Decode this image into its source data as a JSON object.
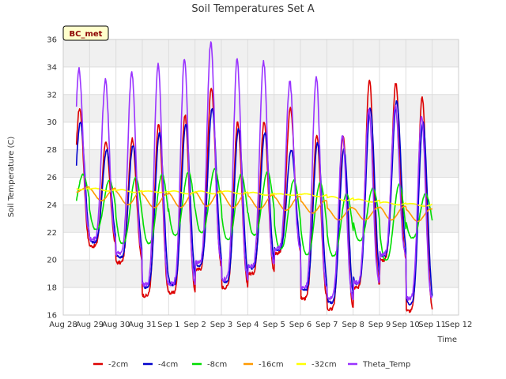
{
  "chart_data": {
    "type": "line",
    "title": "Soil Temperatures Set A",
    "xlabel": "Time",
    "ylabel": "Soil Temperature (C)",
    "badge": "BC_met",
    "ylim": [
      16,
      36
    ],
    "yticks": [
      16,
      18,
      20,
      22,
      24,
      26,
      28,
      30,
      32,
      34,
      36
    ],
    "xlim_days": [
      0,
      15
    ],
    "xticks": [
      "Aug 28",
      "Aug 29",
      "Aug 30",
      "Aug 31",
      "Sep 1",
      "Sep 2",
      "Sep 3",
      "Sep 4",
      "Sep 5",
      "Sep 6",
      "Sep 7",
      "Sep 8",
      "Sep 9",
      "Sep 10",
      "Sep 11",
      "Sep 12"
    ],
    "grid": true,
    "legend": "bottom",
    "series": [
      {
        "name": "-2cm",
        "color": "#dd0000",
        "daily_max": [
          31.0,
          28.5,
          28.8,
          29.8,
          30.5,
          32.5,
          30.0,
          30.0,
          31.0,
          29.0,
          29.0,
          33.0,
          32.8,
          31.8
        ],
        "daily_min": [
          21.0,
          21.0,
          19.8,
          17.4,
          17.6,
          19.3,
          18.0,
          19.0,
          20.5,
          17.2,
          16.4,
          18.0,
          20.0,
          16.3
        ]
      },
      {
        "name": "-4cm",
        "color": "#0000cc",
        "daily_max": [
          30.0,
          28.0,
          28.3,
          29.2,
          29.8,
          31.0,
          29.5,
          29.2,
          28.0,
          28.5,
          28.0,
          31.0,
          31.5,
          30.0
        ],
        "daily_min": [
          21.3,
          21.3,
          20.2,
          18.0,
          18.2,
          19.6,
          18.4,
          19.4,
          20.7,
          17.8,
          16.9,
          18.3,
          20.3,
          16.8
        ]
      },
      {
        "name": "-8cm",
        "color": "#00dd00",
        "daily_max": [
          26.2,
          25.8,
          26.0,
          26.2,
          26.4,
          26.6,
          26.2,
          26.4,
          25.8,
          25.6,
          24.8,
          25.2,
          25.5,
          24.8
        ],
        "daily_min": [
          23.0,
          22.2,
          21.2,
          21.2,
          21.8,
          22.0,
          21.5,
          21.8,
          20.8,
          20.4,
          20.3,
          21.4,
          20.0,
          21.6
        ]
      },
      {
        "name": "-16cm",
        "color": "#ff9900",
        "daily_max": [
          25.3,
          25.2,
          25.0,
          24.8,
          24.9,
          25.0,
          24.9,
          24.7,
          24.6,
          24.3,
          23.8,
          23.8,
          23.9,
          23.7
        ],
        "daily_min": [
          24.9,
          24.3,
          24.0,
          23.8,
          23.8,
          23.9,
          23.8,
          23.7,
          23.6,
          23.4,
          22.9,
          22.9,
          22.9,
          22.8
        ]
      },
      {
        "name": "-32cm",
        "color": "#ffff00",
        "daily_max": [
          25.3,
          25.2,
          25.1,
          25.0,
          25.0,
          25.0,
          25.0,
          24.9,
          24.8,
          24.8,
          24.6,
          24.4,
          24.2,
          24.1
        ],
        "daily_min": [
          25.1,
          25.0,
          24.9,
          24.9,
          24.8,
          24.8,
          24.8,
          24.7,
          24.7,
          24.6,
          24.3,
          24.2,
          24.0,
          23.9
        ]
      },
      {
        "name": "Theta_Temp",
        "color": "#9933ff",
        "daily_max": [
          33.8,
          33.0,
          33.6,
          34.2,
          34.5,
          35.8,
          34.5,
          34.4,
          32.9,
          33.3,
          29.0,
          31.0,
          31.2,
          30.4
        ],
        "daily_min": [
          22.0,
          21.5,
          20.5,
          18.2,
          18.3,
          19.8,
          18.6,
          19.6,
          20.8,
          18.0,
          17.2,
          18.4,
          20.4,
          17.2
        ]
      }
    ]
  }
}
